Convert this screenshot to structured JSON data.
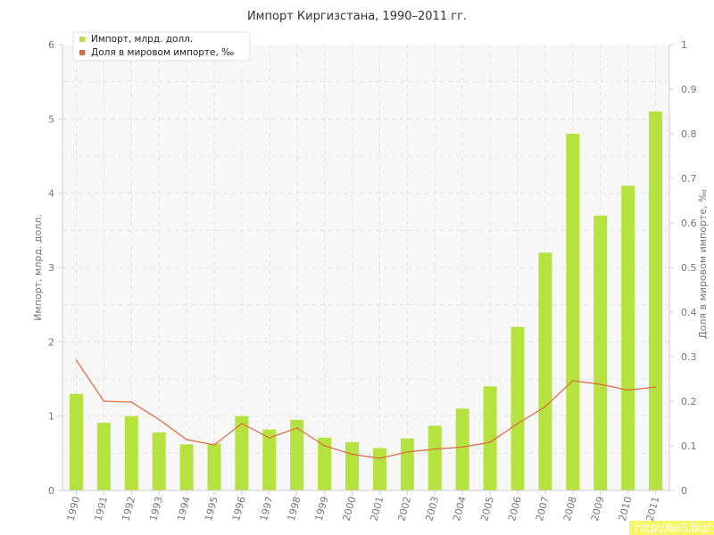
{
  "chart_data": {
    "type": "bar",
    "title": "Импорт Киргизстана, 1990–2011 гг.",
    "categories": [
      "1990",
      "1991",
      "1992",
      "1993",
      "1994",
      "1995",
      "1996",
      "1997",
      "1998",
      "1999",
      "2000",
      "2001",
      "2002",
      "2003",
      "2004",
      "2005",
      "2006",
      "2007",
      "2008",
      "2009",
      "2010",
      "2011"
    ],
    "series": [
      {
        "name": "Импорт, млрд. долл.",
        "type": "bar",
        "axis": "left",
        "color": "#b5e23f",
        "values": [
          1.3,
          0.91,
          1.0,
          0.78,
          0.62,
          0.63,
          1.0,
          0.82,
          0.95,
          0.71,
          0.65,
          0.57,
          0.7,
          0.87,
          1.1,
          1.4,
          2.2,
          3.2,
          4.8,
          3.7,
          4.1,
          5.1
        ]
      },
      {
        "name": "Доля в мировом импорте, ‰",
        "type": "line",
        "axis": "right",
        "color": "#e06a3c",
        "values": [
          0.292,
          0.2,
          0.198,
          0.159,
          0.114,
          0.102,
          0.15,
          0.118,
          0.14,
          0.1,
          0.081,
          0.072,
          0.086,
          0.093,
          0.097,
          0.108,
          0.15,
          0.188,
          0.246,
          0.238,
          0.225,
          0.232
        ]
      }
    ],
    "ylabel": "Импорт, млрд. долл.",
    "ylabel_right": "Доля в мировом импорте, ‰",
    "xlabel": "",
    "ylim": [
      0,
      6
    ],
    "ylim_right": [
      0,
      1
    ],
    "yticks": [
      "0",
      "1",
      "2",
      "3",
      "4",
      "5",
      "6"
    ],
    "yticks_right": [
      "0",
      "0.1",
      "0.2",
      "0.3",
      "0.4",
      "0.5",
      "0.6",
      "0.7",
      "0.8",
      "0.9",
      "1"
    ],
    "grid": true,
    "legend_position": "top-left"
  },
  "watermark": "http://be5.biz/"
}
